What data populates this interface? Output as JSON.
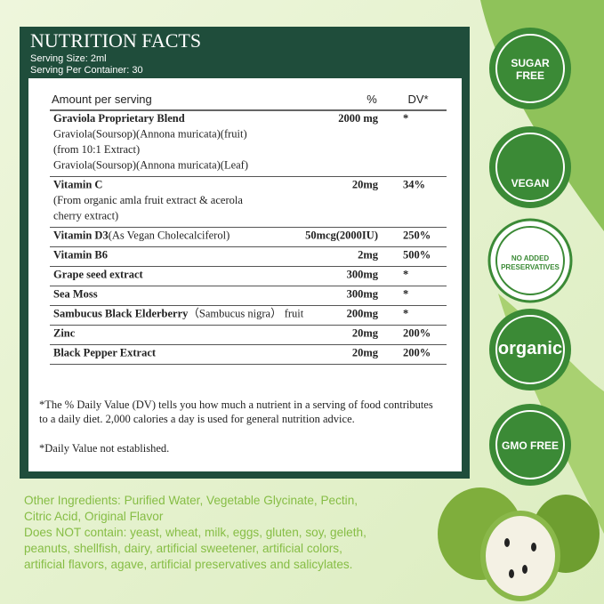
{
  "panel": {
    "title": "NUTRITION FACTS",
    "serving_size": "Serving Size: 2ml",
    "servings_per_container": "Serving Per Container: 30",
    "table": {
      "header": {
        "label": "Amount per serving",
        "percent": "%",
        "dv": "DV*"
      },
      "rows": [
        {
          "name": "Graviola Proprietary Blend",
          "amount": "2000 mg",
          "dv": "*",
          "details": [
            "Graviola(Soursop)(Annona muricata)(fruit)",
            "(from 10:1 Extract)",
            "Graviola(Soursop)(Annona muricata)(Leaf)"
          ]
        },
        {
          "name": "Vitamin C",
          "amount": "20mg",
          "dv": "34%",
          "details": [
            "(From organic amla fruit extract & acerola",
            "cherry extract)"
          ]
        },
        {
          "name": "Vitamin D3",
          "extra": "(As Vegan Cholecalciferol)",
          "amount": "50mcg(2000IU)",
          "dv": "250%"
        },
        {
          "name": "Vitamin B6",
          "amount": "2mg",
          "dv": "500%"
        },
        {
          "name": "Grape seed extract",
          "amount": "300mg",
          "dv": "*"
        },
        {
          "name": "Sea Moss",
          "amount": "300mg",
          "dv": "*"
        },
        {
          "name": "Sambucus Black Elderberry",
          "extra": "（Sambucus nigra） fruit",
          "amount": "200mg",
          "dv": "*"
        },
        {
          "name": "Zinc",
          "amount": "20mg",
          "dv": "200%"
        },
        {
          "name": "Black Pepper Extract",
          "amount": "20mg",
          "dv": "200%"
        }
      ]
    },
    "footnotes": [
      "*The % Daily Value (DV) tells you how much a nutrient in a serving of food contributes",
      "to a daily diet. 2,000 calories a day is used for general nutrition advice.",
      "*Daily Value not established."
    ]
  },
  "badges": [
    {
      "lines": [
        "SUGAR",
        "FREE"
      ]
    },
    {
      "lines": [
        "VEGAN"
      ]
    },
    {
      "lines": [
        "NO ADDED",
        "PRESERVATIVES"
      ]
    },
    {
      "lines": [
        "organic"
      ]
    },
    {
      "lines": [
        "GMO FREE"
      ]
    }
  ],
  "ingredients": [
    "Other Ingredients: Purified Water, Vegetable Glycinate, Pectin,",
    "Citric Acid, Original Flavor",
    "Does NOT contain: yeast, wheat, milk, eggs, gluten, soy, geleth,",
    "peanuts, shellfish, dairy, artificial sweetener, artificial colors,",
    "artificial flavors, agave, artificial preservatives and salicylates."
  ]
}
